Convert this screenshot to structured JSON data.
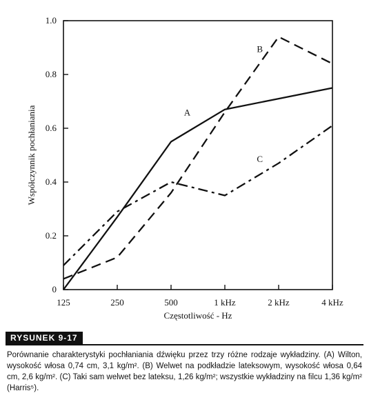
{
  "chart_data": {
    "type": "line",
    "ylabel": "Współczynnik pochłaniania",
    "xlabel": "Częstotliwość - Hz",
    "categories": [
      "125",
      "250",
      "500",
      "1 kHz",
      "2 kHz",
      "4 kHz"
    ],
    "y_ticks": [
      "0",
      "0.2",
      "0.4",
      "0.6",
      "0.8",
      "1.0"
    ],
    "ylim": [
      0,
      1.0
    ],
    "grid": false,
    "series": [
      {
        "name": "A",
        "style": "solid",
        "values": [
          0.0,
          0.27,
          0.55,
          0.67,
          0.71,
          0.75
        ]
      },
      {
        "name": "B",
        "style": "dashed",
        "values": [
          0.04,
          0.12,
          0.36,
          0.66,
          0.94,
          0.84
        ]
      },
      {
        "name": "C",
        "style": "dashdot",
        "values": [
          0.09,
          0.29,
          0.4,
          0.35,
          0.47,
          0.61
        ]
      }
    ]
  },
  "figure": {
    "label": "RYSUNEK 9-17",
    "caption": "Porównanie charakterystyki pochłaniania dźwięku przez trzy różne rodzaje wykładziny. (A) Wilton, wysokość włosa 0,74 cm, 3,1 kg/m². (B) Welwet na podkładzie lateksowym, wysokość włosa 0,64 cm, 2,6 kg/m². (C) Taki sam welwet bez lateksu, 1,26 kg/m²; wszystkie wykładziny na filcu 1,36 kg/m² (Harris⁵)."
  }
}
